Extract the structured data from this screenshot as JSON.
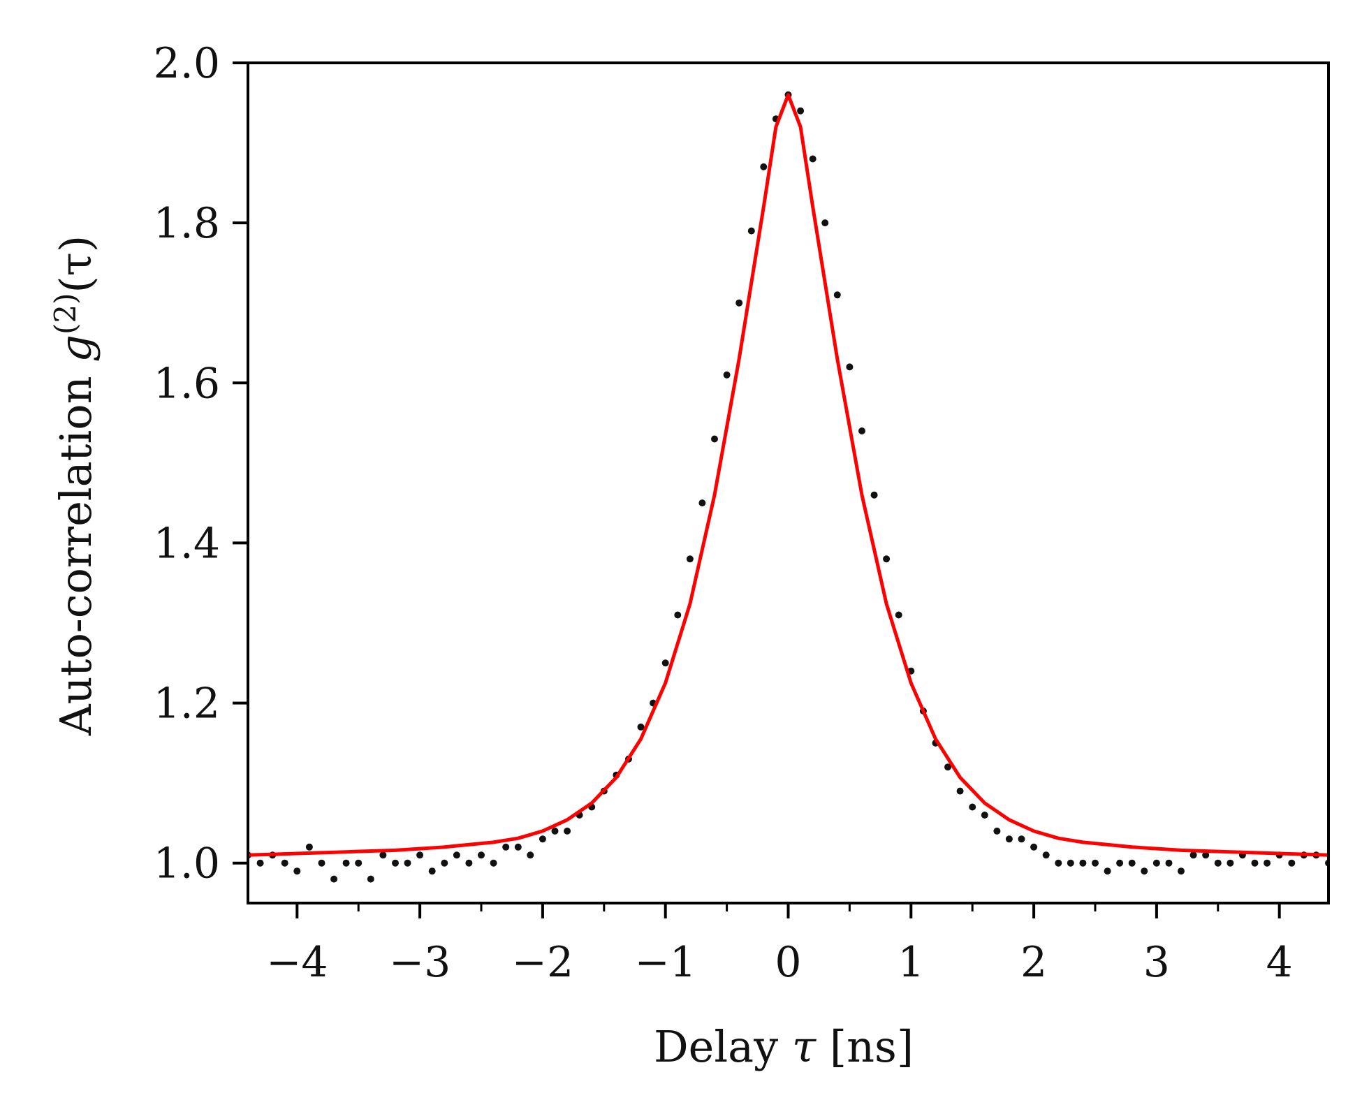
{
  "chart_data": {
    "type": "scatter",
    "xlabel": {
      "prefix": "Delay ",
      "symbol": "τ",
      "suffix": " [ns]"
    },
    "ylabel": {
      "prefix": "Auto-correlation ",
      "symbol": "g",
      "superscript": "(2)",
      "arg": "(τ)"
    },
    "xlim": [
      -4.4,
      4.4
    ],
    "ylim": [
      0.95,
      2.0
    ],
    "x_major_ticks": [
      -4,
      -3,
      -2,
      -1,
      0,
      1,
      2,
      3,
      4
    ],
    "x_tick_labels": [
      "−4",
      "−3",
      "−2",
      "−1",
      "0",
      "1",
      "2",
      "3",
      "4"
    ],
    "x_minor_ticks": [
      -3.5,
      -2.5,
      -1.5,
      -0.5,
      0.5,
      1.5,
      2.5,
      3.5
    ],
    "y_major_ticks": [
      1.0,
      1.2,
      1.4,
      1.6,
      1.8,
      2.0
    ],
    "y_tick_labels": [
      "1.0",
      "1.2",
      "1.4",
      "1.6",
      "1.8",
      "2.0"
    ],
    "grid": false,
    "legend": "none",
    "colors": {
      "data": "#111111",
      "fit": "#ff0000",
      "axes": "#000000"
    },
    "series": [
      {
        "kind": "scatter",
        "x": [
          -4.4,
          -4.3,
          -4.2,
          -4.1,
          -4.0,
          -3.9,
          -3.8,
          -3.7,
          -3.6,
          -3.5,
          -3.4,
          -3.3,
          -3.2,
          -3.1,
          -3.0,
          -2.9,
          -2.8,
          -2.7,
          -2.6,
          -2.5,
          -2.4,
          -2.3,
          -2.2,
          -2.1,
          -2.0,
          -1.9,
          -1.8,
          -1.7,
          -1.6,
          -1.5,
          -1.4,
          -1.3,
          -1.2,
          -1.1,
          -1.0,
          -0.9,
          -0.8,
          -0.7,
          -0.6,
          -0.5,
          -0.4,
          -0.3,
          -0.2,
          -0.1,
          0.0,
          0.1,
          0.2,
          0.3,
          0.4,
          0.5,
          0.6,
          0.7,
          0.8,
          0.9,
          1.0,
          1.1,
          1.2,
          1.3,
          1.4,
          1.5,
          1.6,
          1.7,
          1.8,
          1.9,
          2.0,
          2.1,
          2.2,
          2.3,
          2.4,
          2.5,
          2.6,
          2.7,
          2.8,
          2.9,
          3.0,
          3.1,
          3.2,
          3.3,
          3.4,
          3.5,
          3.6,
          3.7,
          3.8,
          3.9,
          4.0,
          4.1,
          4.2,
          4.3,
          4.4
        ],
        "y": [
          1.01,
          1.0,
          1.01,
          1.0,
          0.99,
          1.02,
          1.0,
          0.98,
          1.0,
          1.0,
          0.98,
          1.01,
          1.0,
          1.0,
          1.01,
          0.99,
          1.0,
          1.01,
          1.0,
          1.01,
          1.0,
          1.02,
          1.02,
          1.01,
          1.03,
          1.04,
          1.04,
          1.06,
          1.07,
          1.09,
          1.11,
          1.13,
          1.17,
          1.2,
          1.25,
          1.31,
          1.38,
          1.45,
          1.53,
          1.61,
          1.7,
          1.79,
          1.87,
          1.93,
          1.96,
          1.94,
          1.88,
          1.8,
          1.71,
          1.62,
          1.54,
          1.46,
          1.38,
          1.31,
          1.24,
          1.19,
          1.15,
          1.12,
          1.09,
          1.07,
          1.06,
          1.04,
          1.03,
          1.03,
          1.02,
          1.01,
          1.0,
          1.0,
          1.0,
          1.0,
          0.99,
          1.0,
          1.0,
          0.99,
          1.0,
          1.0,
          0.99,
          1.01,
          1.01,
          1.0,
          1.0,
          1.01,
          1.0,
          1.0,
          1.01,
          1.0,
          1.01,
          1.01,
          1.0
        ]
      },
      {
        "kind": "line",
        "x": [
          -4.4,
          -4.0,
          -3.6,
          -3.2,
          -2.8,
          -2.4,
          -2.2,
          -2.0,
          -1.8,
          -1.6,
          -1.4,
          -1.2,
          -1.0,
          -0.8,
          -0.6,
          -0.4,
          -0.2,
          -0.1,
          0.0,
          0.1,
          0.2,
          0.4,
          0.6,
          0.8,
          1.0,
          1.2,
          1.4,
          1.6,
          1.8,
          2.0,
          2.2,
          2.4,
          2.8,
          3.2,
          3.6,
          4.0,
          4.4
        ],
        "y": [
          1.01,
          1.012,
          1.014,
          1.016,
          1.02,
          1.026,
          1.031,
          1.04,
          1.054,
          1.075,
          1.107,
          1.155,
          1.225,
          1.324,
          1.46,
          1.63,
          1.82,
          1.92,
          1.96,
          1.92,
          1.82,
          1.63,
          1.46,
          1.324,
          1.225,
          1.155,
          1.107,
          1.075,
          1.054,
          1.04,
          1.031,
          1.026,
          1.02,
          1.016,
          1.014,
          1.012,
          1.01
        ]
      }
    ]
  }
}
